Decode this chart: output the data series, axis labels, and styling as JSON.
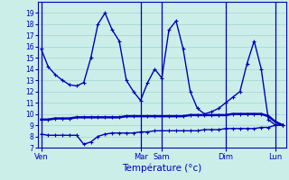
{
  "title": "Température (°c)",
  "bg_color": "#cceee8",
  "grid_color": "#aad8d0",
  "line_color": "#0000bb",
  "ylim": [
    7,
    20
  ],
  "yticks": [
    7,
    8,
    9,
    10,
    11,
    12,
    13,
    14,
    15,
    16,
    17,
    18,
    19
  ],
  "day_labels": [
    "Ven",
    "Mar",
    "Sam",
    "Dim",
    "Lun"
  ],
  "vline_positions": [
    0,
    14,
    17,
    26,
    33
  ],
  "xtick_positions": [
    0,
    14,
    17,
    26,
    33
  ],
  "n_points": 35,
  "line1": [
    15.8,
    14.2,
    13.5,
    13.0,
    12.6,
    12.5,
    12.8,
    15.0,
    18.0,
    19.0,
    17.5,
    16.5,
    13.0,
    12.0,
    11.2,
    12.8,
    14.0,
    13.2,
    17.5,
    18.3,
    15.8,
    12.0,
    10.5,
    10.0,
    10.2,
    10.5,
    11.0,
    11.5,
    12.0,
    14.5,
    16.5,
    14.0,
    9.5,
    9.0,
    9.0
  ],
  "line2": [
    9.5,
    9.5,
    9.6,
    9.6,
    9.6,
    9.7,
    9.7,
    9.7,
    9.7,
    9.7,
    9.7,
    9.7,
    9.8,
    9.8,
    9.8,
    9.8,
    9.8,
    9.8,
    9.8,
    9.8,
    9.8,
    9.9,
    9.9,
    9.9,
    9.9,
    9.9,
    9.9,
    10.0,
    10.0,
    10.0,
    10.0,
    10.0,
    9.8,
    9.3,
    9.0
  ],
  "line3": [
    8.2,
    8.1,
    8.1,
    8.1,
    8.1,
    8.1,
    7.3,
    7.5,
    8.0,
    8.2,
    8.3,
    8.3,
    8.3,
    8.3,
    8.4,
    8.4,
    8.5,
    8.5,
    8.5,
    8.5,
    8.5,
    8.5,
    8.5,
    8.6,
    8.6,
    8.6,
    8.7,
    8.7,
    8.7,
    8.7,
    8.7,
    8.8,
    8.8,
    9.0,
    9.0
  ]
}
